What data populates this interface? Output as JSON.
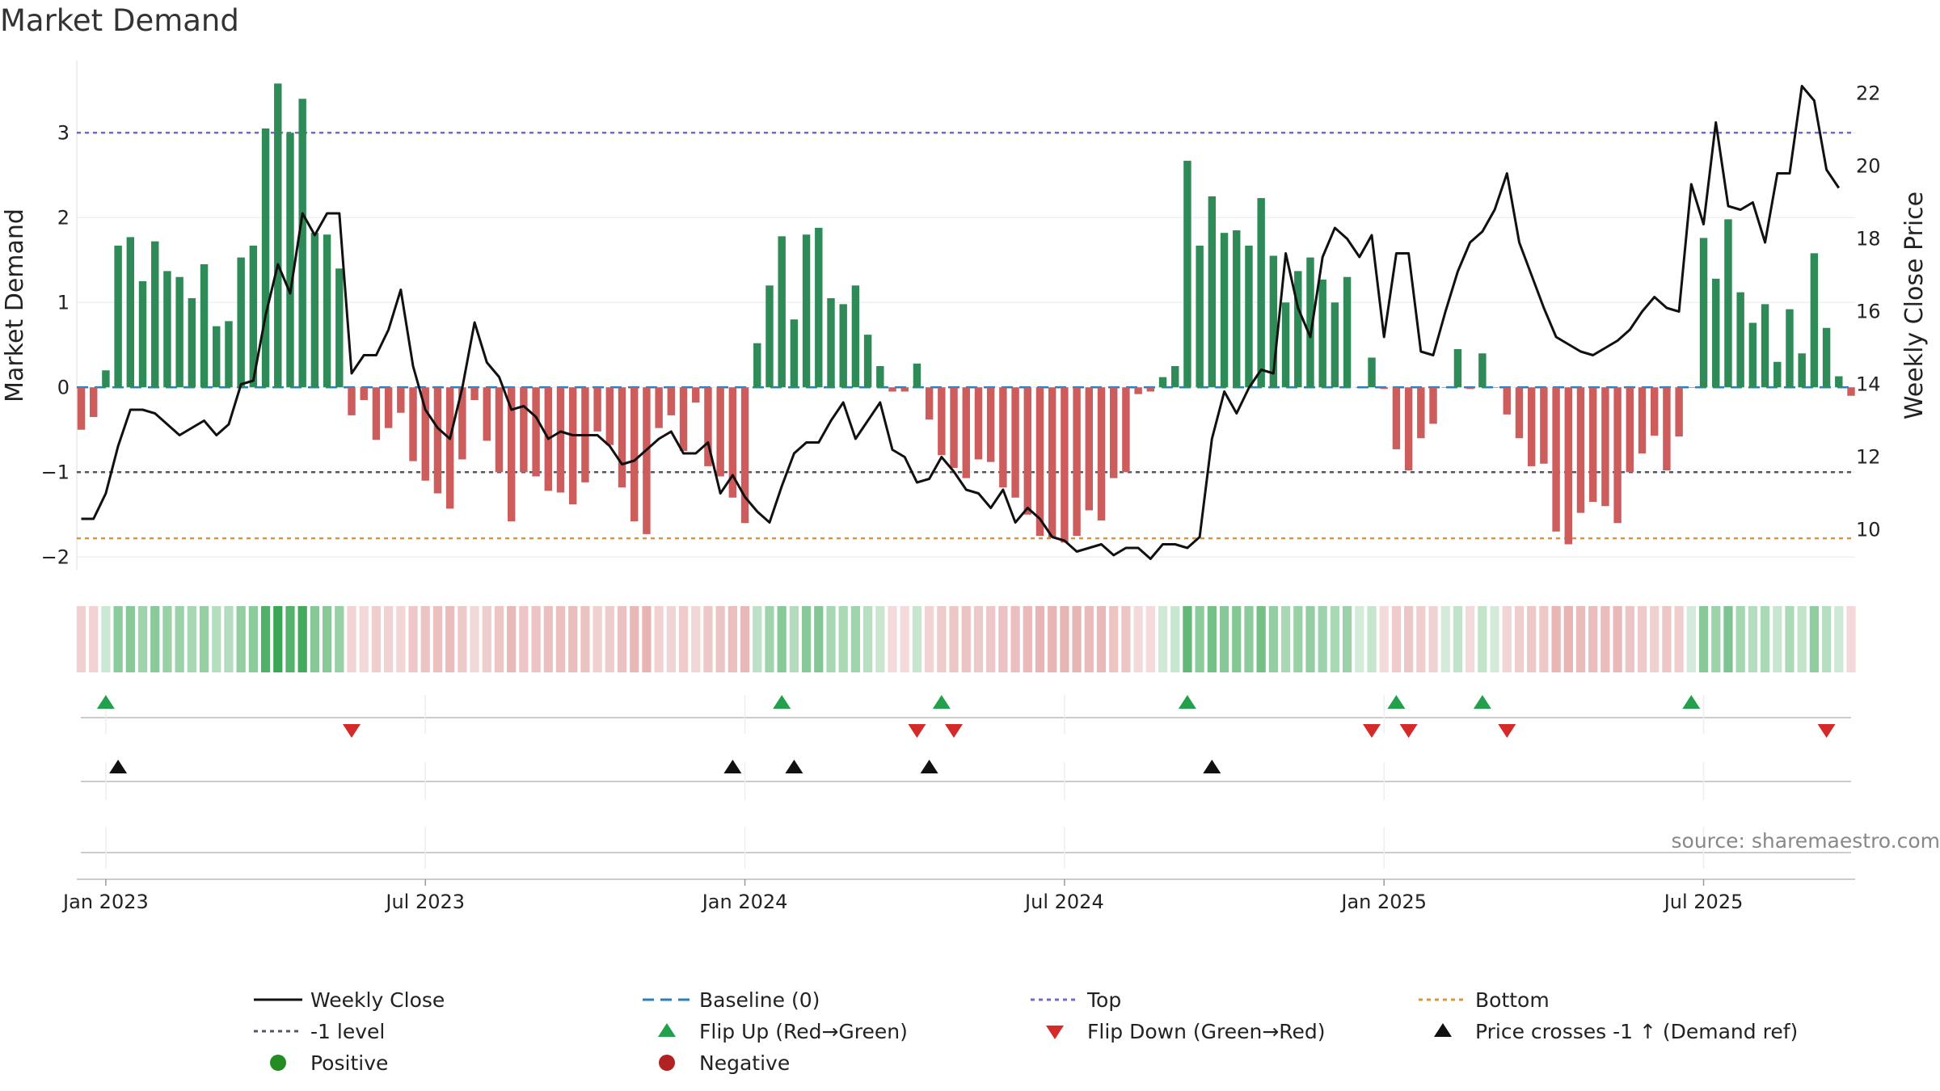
{
  "chart_data": {
    "type": "bar",
    "title": "Market Demand",
    "ylabel_left": "Market Demand",
    "ylabel_right": "Weekly Close Price",
    "ylim_left": [
      -2.15,
      3.85
    ],
    "ylim_right": [
      8.9,
      22.9
    ],
    "yticks_left": [
      {
        "v": 3,
        "label": "3"
      },
      {
        "v": 2,
        "label": "2"
      },
      {
        "v": 1,
        "label": "1"
      },
      {
        "v": 0,
        "label": "0"
      },
      {
        "v": -1,
        "label": "−1"
      },
      {
        "v": -2,
        "label": "−2"
      }
    ],
    "yticks_right": [
      {
        "v": 22,
        "label": "22"
      },
      {
        "v": 20,
        "label": "20"
      },
      {
        "v": 18,
        "label": "18"
      },
      {
        "v": 16,
        "label": "16"
      },
      {
        "v": 14,
        "label": "14"
      },
      {
        "v": 12,
        "label": "12"
      },
      {
        "v": 10,
        "label": "10"
      }
    ],
    "x_ticks": [
      {
        "week": 2,
        "label": "Jan 2023"
      },
      {
        "week": 28,
        "label": "Jul 2023"
      },
      {
        "week": 54,
        "label": "Jan 2024"
      },
      {
        "week": 80,
        "label": "Jul 2024"
      },
      {
        "week": 106,
        "label": "Jan 2025"
      },
      {
        "week": 132,
        "label": "Jul 2025"
      }
    ],
    "reference_lines": {
      "top": 3,
      "bottom": -1.78,
      "minus_one": -1,
      "baseline": 0,
      "top_color": "#6a6ae0",
      "bottom_color": "#e8932a",
      "minus_one_color": "#555566",
      "baseline_color": "#2a7fc0"
    },
    "colors": {
      "positive": "#2e8b57",
      "negative": "#cd5c5c",
      "price": "#111111",
      "flip_up": "#22a04b",
      "flip_down": "#d42a2a",
      "price_cross": "#111111",
      "legend_positive": "#228b22",
      "legend_negative": "#b22222"
    },
    "demand": [
      -0.5,
      -0.35,
      0.2,
      1.67,
      1.77,
      1.25,
      1.72,
      1.37,
      1.3,
      1.05,
      1.45,
      0.72,
      0.78,
      1.53,
      1.67,
      3.05,
      3.58,
      3.0,
      3.4,
      1.82,
      1.8,
      1.4,
      -0.33,
      -0.15,
      -0.62,
      -0.48,
      -0.3,
      -0.87,
      -1.1,
      -1.25,
      -1.43,
      -0.85,
      -0.15,
      -0.63,
      -1.0,
      -1.58,
      -1.0,
      -1.05,
      -1.22,
      -1.24,
      -1.38,
      -1.12,
      -0.52,
      -0.68,
      -1.18,
      -1.58,
      -1.73,
      -0.48,
      -0.33,
      -0.75,
      -0.18,
      -0.93,
      -1.05,
      -1.3,
      -1.6,
      0.52,
      1.2,
      1.78,
      0.8,
      1.8,
      1.88,
      1.05,
      0.98,
      1.2,
      0.62,
      0.25,
      -0.05,
      -0.05,
      0.28,
      -0.38,
      -0.8,
      -0.95,
      -1.07,
      -0.85,
      -0.88,
      -1.18,
      -1.3,
      -1.5,
      -1.75,
      -1.77,
      -1.83,
      -1.75,
      -1.45,
      -1.57,
      -1.07,
      -1.0,
      -0.08,
      -0.05,
      0.12,
      0.25,
      2.67,
      1.67,
      2.25,
      1.82,
      1.85,
      1.67,
      2.23,
      1.55,
      1.0,
      1.37,
      1.53,
      1.27,
      1.0,
      1.3,
      0.0,
      0.35,
      -0.02,
      -0.73,
      -0.98,
      -0.6,
      -0.43,
      0.0,
      0.45,
      -0.02,
      0.4,
      0.0,
      -0.32,
      -0.6,
      -0.93,
      -0.9,
      -1.7,
      -1.85,
      -1.48,
      -1.35,
      -1.4,
      -1.6,
      -1.0,
      -0.78,
      -0.57,
      -0.98,
      -0.58,
      0.0,
      1.76,
      1.28,
      1.98,
      1.12,
      0.76,
      0.98,
      0.3,
      0.92,
      0.4,
      1.58,
      0.7,
      0.13,
      -0.1
    ],
    "price": [
      10.3,
      10.3,
      11.0,
      12.3,
      13.3,
      13.3,
      13.2,
      12.9,
      12.6,
      12.8,
      13.0,
      12.6,
      12.9,
      14.0,
      14.1,
      15.9,
      17.3,
      16.5,
      18.7,
      18.1,
      18.7,
      18.7,
      14.3,
      14.8,
      14.8,
      15.5,
      16.6,
      14.5,
      13.3,
      12.8,
      12.5,
      13.9,
      15.7,
      14.6,
      14.2,
      13.3,
      13.4,
      13.1,
      12.5,
      12.7,
      12.6,
      12.6,
      12.6,
      12.3,
      11.8,
      11.9,
      12.2,
      12.5,
      12.7,
      12.1,
      12.1,
      12.4,
      11.0,
      11.5,
      10.9,
      10.5,
      10.2,
      11.2,
      12.1,
      12.4,
      12.4,
      13.0,
      13.5,
      12.5,
      13.0,
      13.5,
      12.2,
      12.0,
      11.3,
      11.4,
      12.0,
      11.6,
      11.1,
      11.0,
      10.6,
      11.1,
      10.2,
      10.6,
      10.3,
      9.8,
      9.7,
      9.4,
      9.5,
      9.6,
      9.3,
      9.5,
      9.5,
      9.2,
      9.6,
      9.6,
      9.5,
      9.8,
      12.5,
      13.8,
      13.2,
      13.9,
      14.4,
      14.3,
      17.6,
      16.1,
      15.3,
      17.5,
      18.3,
      18.0,
      17.5,
      18.1,
      15.3,
      17.6,
      17.6,
      14.9,
      14.8,
      16.0,
      17.1,
      17.9,
      18.2,
      18.8,
      19.8,
      17.9,
      17.0,
      16.1,
      15.3,
      15.1,
      14.9,
      14.8,
      15.0,
      15.2,
      15.5,
      16.0,
      16.4,
      16.1,
      16.0,
      19.5,
      18.4,
      21.2,
      18.9,
      18.8,
      19.0,
      17.9,
      19.8,
      19.8,
      22.2,
      21.8,
      19.9,
      19.4
    ],
    "flip_up_weeks": [
      2,
      57,
      70,
      90,
      107,
      114,
      131
    ],
    "flip_down_weeks": [
      22,
      68,
      71,
      105,
      108,
      116,
      142
    ],
    "price_cross_weeks": [
      3,
      53,
      58,
      69,
      92
    ],
    "legend": [
      {
        "key": "weekly_close",
        "label": "Weekly Close"
      },
      {
        "key": "baseline",
        "label": "Baseline (0)"
      },
      {
        "key": "top",
        "label": "Top"
      },
      {
        "key": "bottom",
        "label": "Bottom"
      },
      {
        "key": "minus_one",
        "label": "-1 level"
      },
      {
        "key": "flip_up",
        "label": "Flip Up (Red→Green)"
      },
      {
        "key": "flip_down",
        "label": "Flip Down (Green→Red)"
      },
      {
        "key": "price_cross",
        "label": "Price crosses -1 ↑ (Demand ref)"
      },
      {
        "key": "positive",
        "label": "Positive"
      },
      {
        "key": "negative",
        "label": "Negative"
      }
    ],
    "legend_placement": "bottom"
  },
  "source_text": "source: sharemaestro.com"
}
